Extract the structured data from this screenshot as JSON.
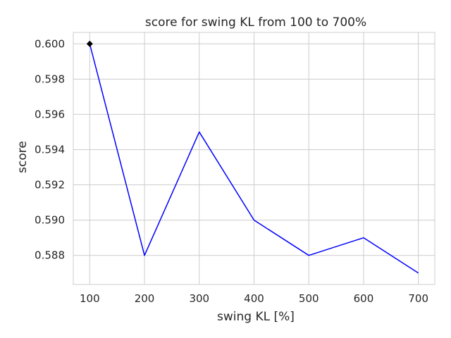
{
  "chart_data": {
    "type": "line",
    "title": "score for swing KL from 100 to 700%",
    "xlabel": "swing KL [%]",
    "ylabel": "score",
    "x": [
      100,
      200,
      300,
      400,
      500,
      600,
      700
    ],
    "series": [
      {
        "values": [
          0.6,
          0.588,
          0.595,
          0.59,
          0.588,
          0.589,
          0.587
        ],
        "color": "#0000ff"
      }
    ],
    "highlight_point": {
      "x": 100,
      "y": 0.6,
      "marker": "diamond",
      "color": "#000000"
    },
    "xticks": [
      "100",
      "200",
      "300",
      "400",
      "500",
      "600",
      "700"
    ],
    "yticks": [
      "0.588",
      "0.590",
      "0.592",
      "0.594",
      "0.596",
      "0.598",
      "0.600"
    ],
    "xlim": [
      70,
      730
    ],
    "ylim": [
      0.58635,
      0.60065
    ],
    "grid": true,
    "legend": false
  }
}
